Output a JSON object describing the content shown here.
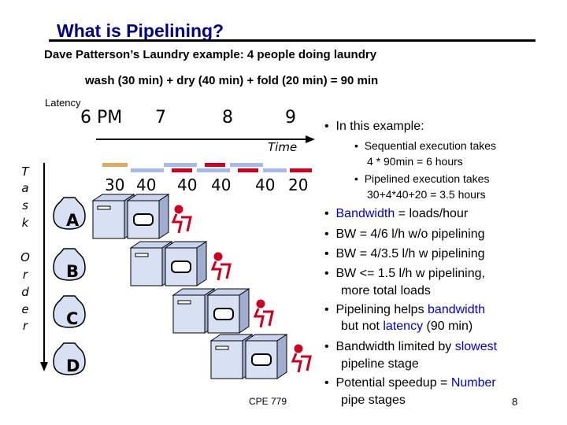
{
  "title": "What is Pipelining?",
  "subtitle": "Dave Patterson’s Laundry example: 4 people doing laundry",
  "formula": "wash (30 min) + dry (40 min) + fold (20 min) = 90 min",
  "latency_label": "Latency",
  "time_labels": [
    "6 PM",
    "7",
    "8",
    "9"
  ],
  "time_word": "Time",
  "durations": [
    "30",
    "40",
    "40",
    "40",
    "40",
    "20"
  ],
  "task_axis_letters": [
    "T",
    "a",
    "s",
    "k",
    "",
    "O",
    "r",
    "d",
    "e",
    "r"
  ],
  "tasks": [
    "A",
    "B",
    "C",
    "D"
  ],
  "bullets": {
    "intro": "In this example:",
    "sub1_line1": "Sequential execution takes",
    "sub1_line2": "4 * 90min = 6 hours",
    "sub2_line1": "Pipelined execution takes",
    "sub2_line2": "30+4*40+20 = 3.5 hours",
    "b1_a": "Bandwidth",
    "b1_b": " = loads/hour",
    "b2": "BW = 4/6 l/h w/o pipelining",
    "b3": "BW = 4/3.5  l/h w pipelining",
    "b4_line1": "BW <= 1.5 l/h w pipelining,",
    "b4_line2": "more total loads",
    "b5_line1_a": "Pipelining helps ",
    "b5_line1_b": "bandwidth",
    "b5_line2_a": "but not ",
    "b5_line2_b": "latency",
    "b5_line2_c": " (90 min)",
    "b6_line1_a": "Bandwidth limited by ",
    "b6_line1_b": "slowest",
    "b6_line2": "pipeline stage",
    "b7_line1_a": "Potential speedup = ",
    "b7_line1_b": "Number",
    "b7_line2": "pipe stages"
  },
  "footer_left": "CPE 779",
  "page_number": "8",
  "colors": {
    "title": "#000080",
    "highlight": "#0000cc",
    "wash_bar": "#e0a860",
    "dry_bar": "#a8b8e8",
    "fold_bar": "#cc0020"
  }
}
